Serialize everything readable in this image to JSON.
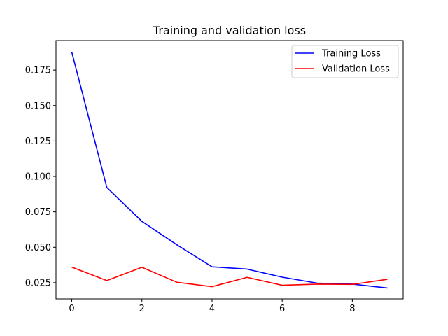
{
  "chart_data": {
    "type": "line",
    "title": "Training and validation loss",
    "xlabel": "",
    "ylabel": "",
    "x": [
      0,
      1,
      2,
      3,
      4,
      5,
      6,
      7,
      8,
      9
    ],
    "xlim": [
      -0.45,
      9.45
    ],
    "ylim": [
      0.0136,
      0.1958
    ],
    "xticks": [
      0,
      2,
      4,
      6,
      8
    ],
    "yticks": [
      0.025,
      0.05,
      0.075,
      0.1,
      0.125,
      0.15,
      0.175
    ],
    "xtick_labels": [
      "0",
      "2",
      "4",
      "6",
      "8"
    ],
    "ytick_labels": [
      "0.025",
      "0.050",
      "0.075",
      "0.100",
      "0.125",
      "0.150",
      "0.175"
    ],
    "grid": false,
    "legend_position": "top-right",
    "series": [
      {
        "name": "Training Loss",
        "color": "#0000ff",
        "values": [
          0.1877,
          0.0922,
          0.0683,
          0.0517,
          0.0362,
          0.0346,
          0.0289,
          0.0247,
          0.024,
          0.0213
        ]
      },
      {
        "name": "Validation Loss",
        "color": "#ff0000",
        "values": [
          0.036,
          0.0265,
          0.0359,
          0.0253,
          0.0222,
          0.0288,
          0.0232,
          0.024,
          0.0238,
          0.0274
        ]
      }
    ]
  }
}
